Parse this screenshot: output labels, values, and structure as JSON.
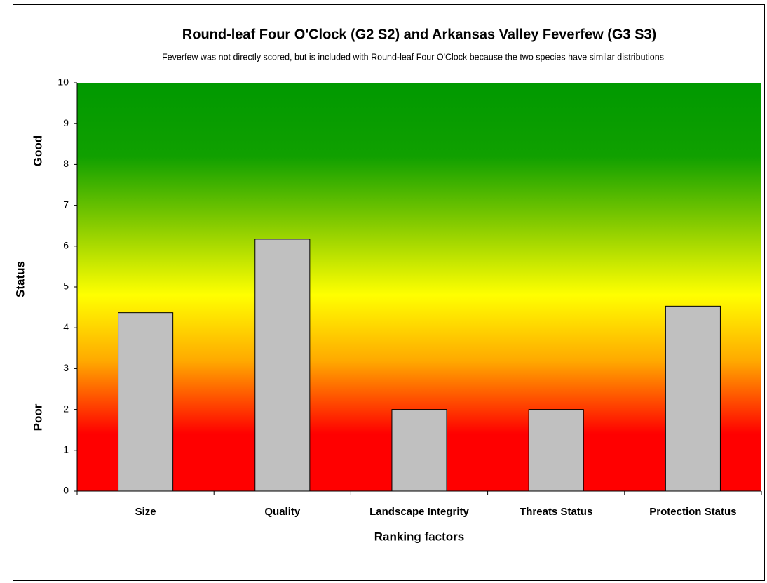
{
  "chart_data": {
    "type": "bar",
    "title": "Round-leaf Four O'Clock (G2 S2) and Arkansas Valley Feverfew  (G3 S3)",
    "subtitle": "Feverfew was not directly scored, but is included with Round-leaf Four O'Clock because the two species have similar distributions",
    "x_label": "Ranking factors",
    "y_label": "Status",
    "annotations": [
      "Good",
      "Poor"
    ],
    "categories": [
      "Size",
      "Quality",
      "Landscape Integrity",
      "Threats Status",
      "Protection Status"
    ],
    "values": [
      4.37,
      6.17,
      2,
      2,
      4.53
    ],
    "color": "#c0c0c0",
    "ylim": [
      0,
      10
    ],
    "yticks": [
      0,
      1,
      2,
      3,
      4,
      5,
      6,
      7,
      8,
      9,
      10
    ],
    "grid": false
  }
}
